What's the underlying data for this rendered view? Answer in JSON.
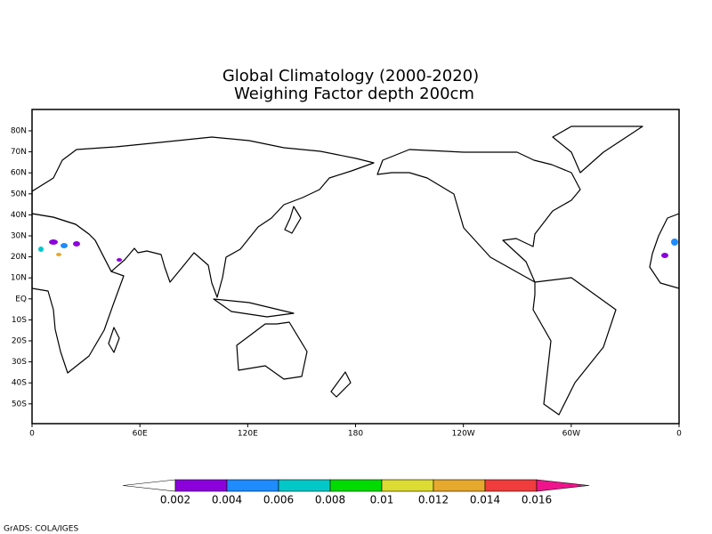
{
  "title": [
    "Global Climatology (2000-2020)",
    "Weighing Factor depth 200cm"
  ],
  "map": {
    "lat_labels": [
      "80N",
      "70N",
      "60N",
      "50N",
      "40N",
      "30N",
      "20N",
      "10N",
      "EQ",
      "10S",
      "20S",
      "30S",
      "40S",
      "50S"
    ],
    "lon_labels": [
      "0",
      "60E",
      "120E",
      "180",
      "120W",
      "60W",
      "0"
    ]
  },
  "colorbar": {
    "levels": [
      "0.002",
      "0.004",
      "0.006",
      "0.008",
      "0.01",
      "0.012",
      "0.014",
      "0.016"
    ],
    "colors": [
      "#ffffff",
      "#8c00dc",
      "#1e8cff",
      "#00c8c8",
      "#00dc00",
      "#dcdc32",
      "#e6a82d",
      "#f03c3c",
      "#f0148c"
    ]
  },
  "footer": "GrADS: COLA/IGES"
}
